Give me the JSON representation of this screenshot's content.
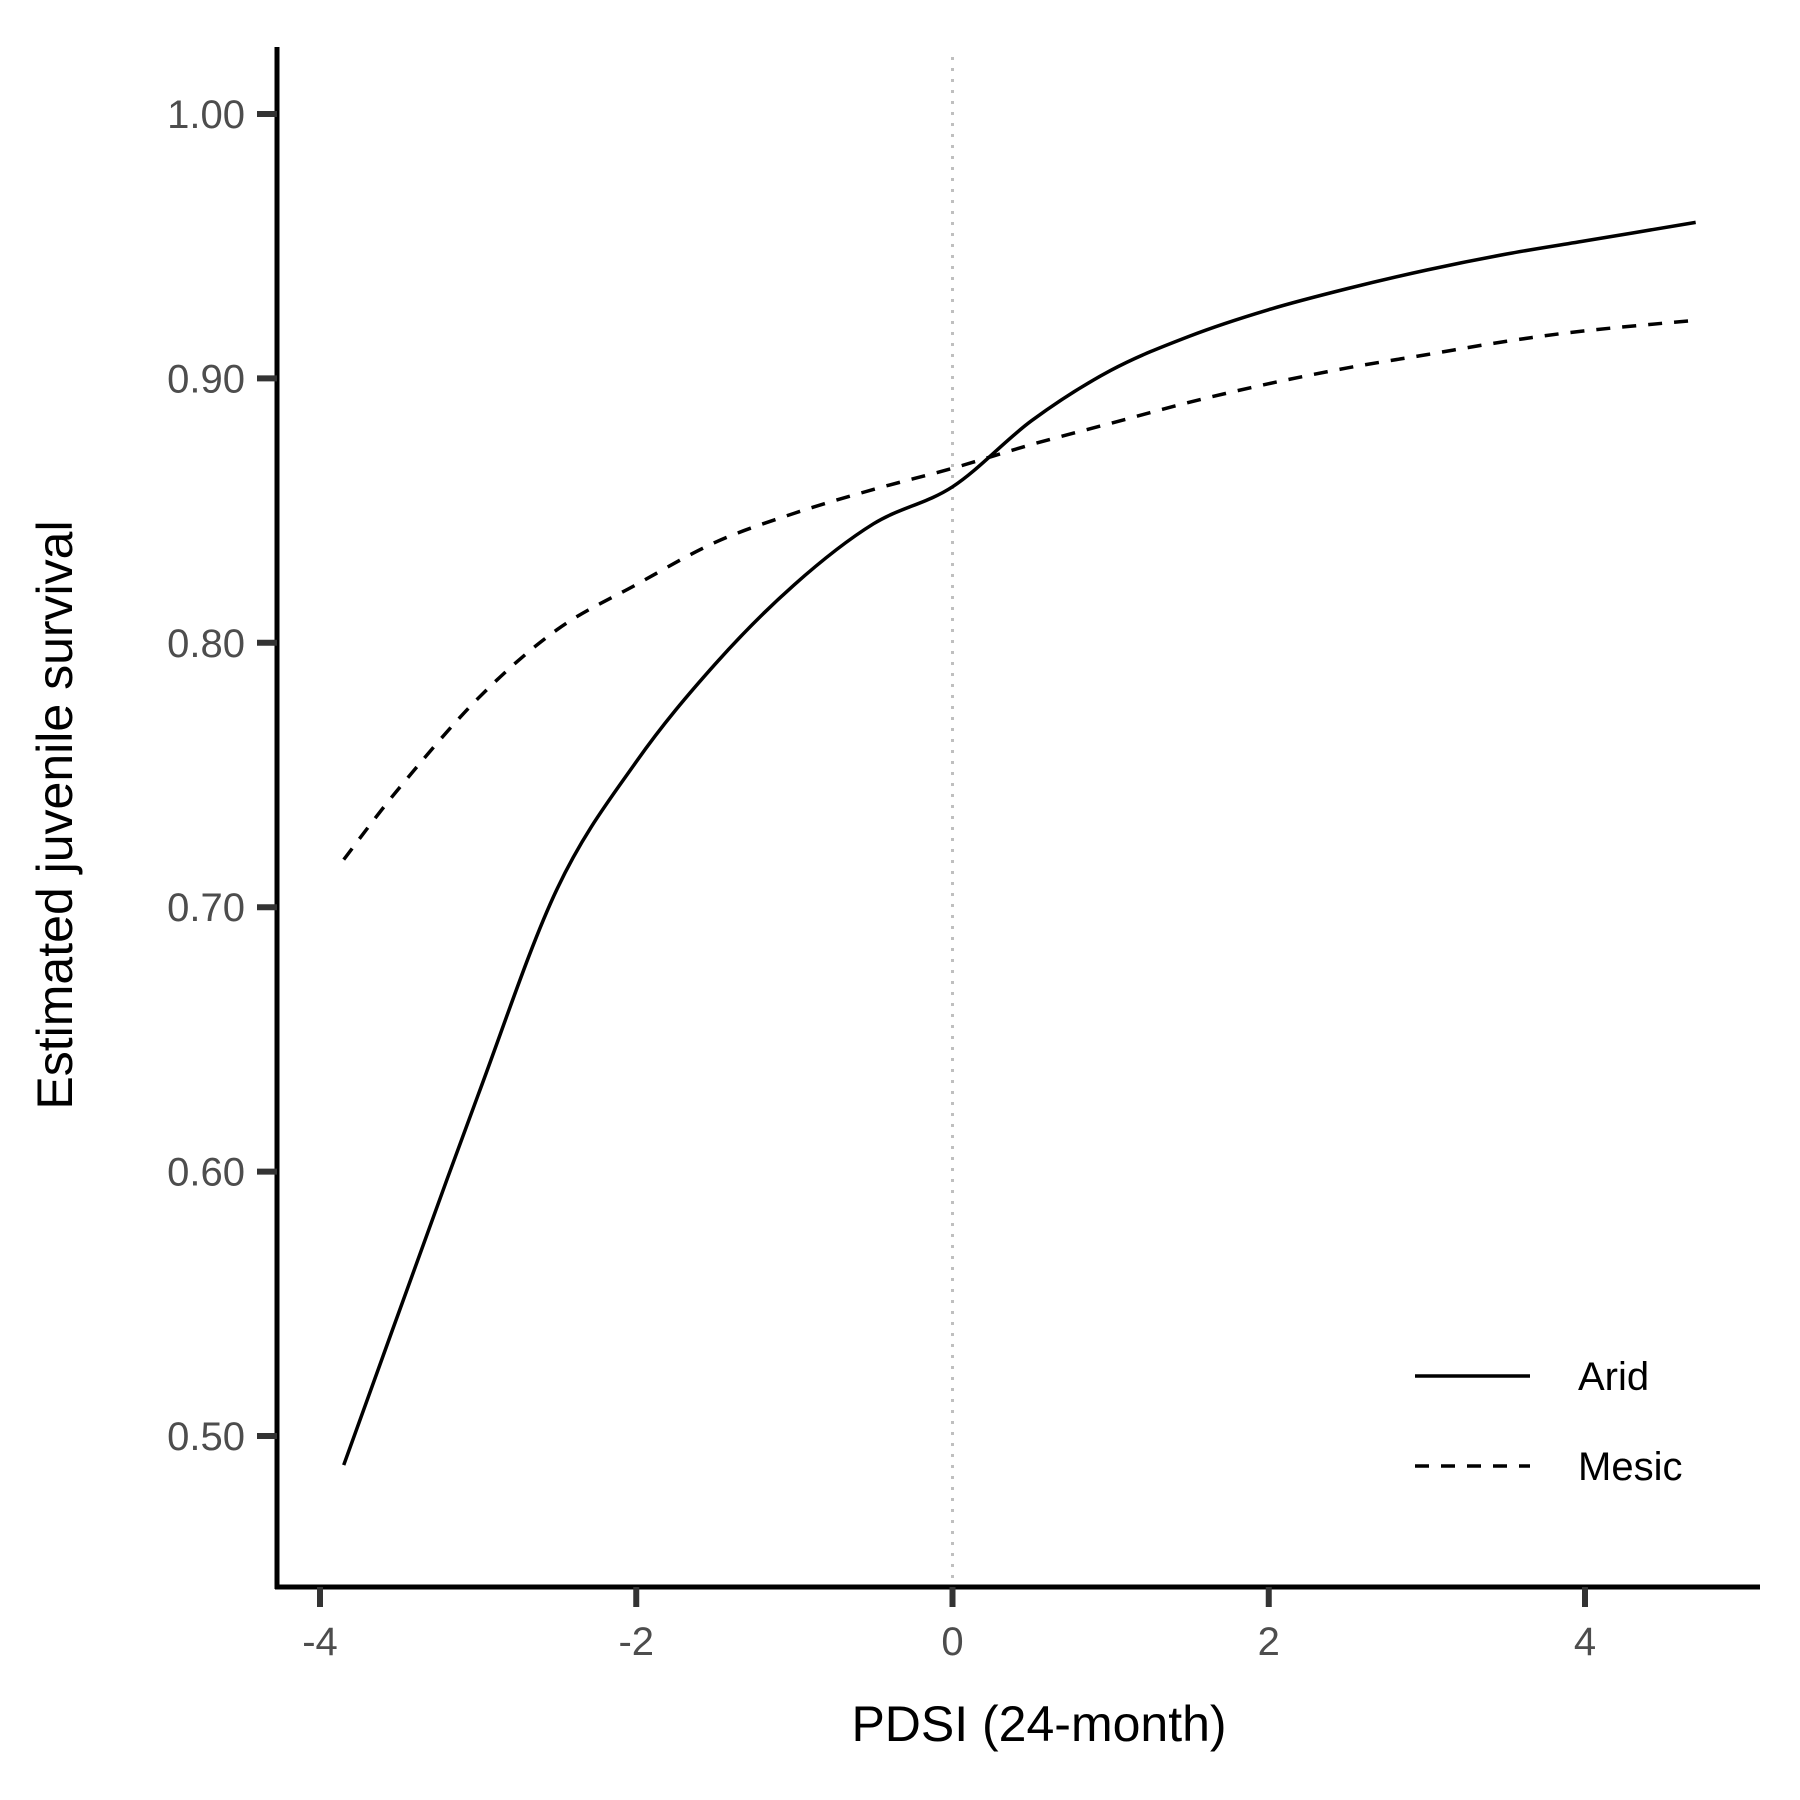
{
  "chart_data": {
    "type": "line",
    "title": "",
    "xlabel": "PDSI (24-month)",
    "ylabel": "Estimated juvenile survival",
    "xlim": [
      -4.25,
      5.1
    ],
    "ylim": [
      0.445,
      1.025
    ],
    "x_ticks": [
      -4,
      -2,
      0,
      2,
      4
    ],
    "x_tick_labels": [
      "-4",
      "-2",
      "0",
      "2",
      "4"
    ],
    "y_ticks": [
      0.5,
      0.6,
      0.7,
      0.8,
      0.9,
      1.0
    ],
    "y_tick_labels": [
      "0.50",
      "0.60",
      "0.70",
      "0.80",
      "0.90",
      "1.00"
    ],
    "reference_line": {
      "x": 0,
      "style": "dotted",
      "color": "#bfbfbf"
    },
    "grid": false,
    "legend_position": "bottom-right",
    "series": [
      {
        "name": "Arid",
        "style": "solid",
        "color": "#000000",
        "x": [
          -3.85,
          -3.5,
          -3.0,
          -2.5,
          -2.0,
          -1.5,
          -1.0,
          -0.5,
          0.0,
          0.5,
          1.0,
          1.5,
          2.0,
          2.5,
          3.0,
          3.5,
          4.0,
          4.7
        ],
        "y": [
          0.489,
          0.547,
          0.629,
          0.707,
          0.755,
          0.792,
          0.822,
          0.845,
          0.859,
          0.884,
          0.903,
          0.916,
          0.926,
          0.934,
          0.941,
          0.947,
          0.952,
          0.959
        ]
      },
      {
        "name": "Mesic",
        "style": "dashed",
        "color": "#000000",
        "x": [
          -3.85,
          -3.5,
          -3.0,
          -2.5,
          -2.0,
          -1.5,
          -1.0,
          -0.5,
          0.0,
          0.5,
          1.0,
          1.5,
          2.0,
          2.5,
          3.0,
          3.5,
          4.0,
          4.7
        ],
        "y": [
          0.718,
          0.745,
          0.779,
          0.805,
          0.822,
          0.838,
          0.849,
          0.858,
          0.866,
          0.875,
          0.883,
          0.891,
          0.898,
          0.904,
          0.909,
          0.914,
          0.918,
          0.922
        ]
      }
    ]
  }
}
